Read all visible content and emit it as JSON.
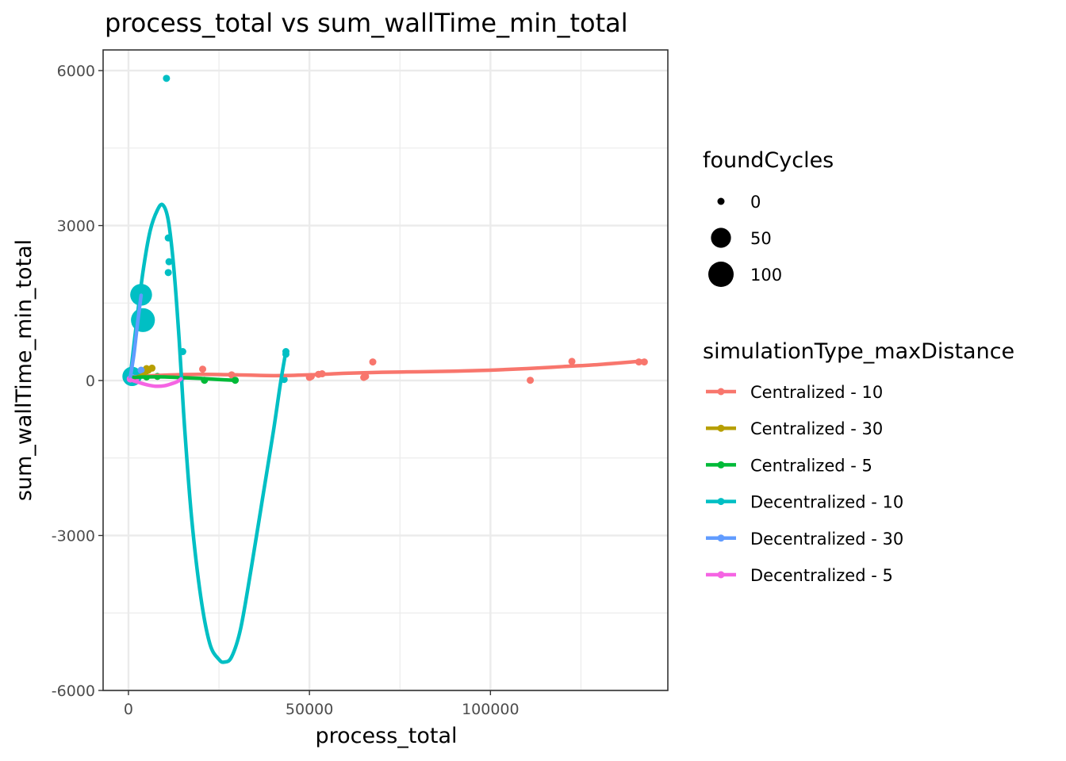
{
  "chart_data": {
    "type": "scatter",
    "title": "process_total  vs  sum_wallTime_min_total",
    "xlabel": "process_total",
    "ylabel": "sum_wallTime_min_total",
    "xlim": [
      -7000,
      149000
    ],
    "ylim": [
      -6000,
      6400
    ],
    "x_ticks": [
      0,
      50000,
      100000
    ],
    "x_tick_labels": [
      "0",
      "50000",
      "100000"
    ],
    "y_ticks": [
      -6000,
      -3000,
      0,
      3000,
      6000
    ],
    "y_tick_labels": [
      "-6000",
      "-3000",
      "0",
      "3000",
      "6000"
    ],
    "grid": true,
    "size_legend": {
      "title": "foundCycles",
      "entries": [
        {
          "label": "0",
          "value": 0
        },
        {
          "label": "50",
          "value": 50
        },
        {
          "label": "100",
          "value": 100
        }
      ]
    },
    "color_legend": {
      "title": "simulationType_maxDistance",
      "placement": "right"
    },
    "series": [
      {
        "name": "Centralized - 10",
        "color": "#F8766D",
        "points": [
          [
            20500,
            220
          ],
          [
            28500,
            110
          ],
          [
            50000,
            60
          ],
          [
            50500,
            80
          ],
          [
            52500,
            120
          ],
          [
            53500,
            130
          ],
          [
            65000,
            60
          ],
          [
            65500,
            80
          ],
          [
            67500,
            360
          ],
          [
            111000,
            5
          ],
          [
            122500,
            370
          ],
          [
            141000,
            360
          ],
          [
            142500,
            360
          ]
        ],
        "sizes": [
          0,
          0,
          0,
          0,
          0,
          0,
          0,
          0,
          0,
          0,
          0,
          0,
          0
        ],
        "curve": [
          [
            500,
            60
          ],
          [
            5000,
            85
          ],
          [
            10000,
            105
          ],
          [
            20000,
            120
          ],
          [
            30000,
            110
          ],
          [
            40000,
            95
          ],
          [
            50000,
            110
          ],
          [
            60000,
            140
          ],
          [
            70000,
            160
          ],
          [
            80000,
            170
          ],
          [
            90000,
            180
          ],
          [
            100000,
            200
          ],
          [
            110000,
            230
          ],
          [
            120000,
            270
          ],
          [
            130000,
            310
          ],
          [
            142500,
            380
          ]
        ]
      },
      {
        "name": "Centralized - 30",
        "color": "#B79F00",
        "points": [
          [
            1500,
            60
          ],
          [
            3000,
            100
          ],
          [
            4500,
            150
          ],
          [
            5000,
            230
          ],
          [
            5500,
            200
          ],
          [
            6500,
            240
          ]
        ],
        "sizes": [
          0,
          0,
          0,
          0,
          0,
          0
        ],
        "curve": [
          [
            500,
            30
          ],
          [
            2000,
            60
          ],
          [
            3500,
            100
          ],
          [
            5000,
            150
          ],
          [
            6500,
            240
          ]
        ]
      },
      {
        "name": "Centralized - 5",
        "color": "#00BA38",
        "points": [
          [
            2000,
            60
          ],
          [
            5000,
            70
          ],
          [
            8000,
            80
          ],
          [
            21000,
            5
          ],
          [
            29500,
            5
          ]
        ],
        "sizes": [
          0,
          0,
          0,
          0,
          0
        ],
        "curve": [
          [
            500,
            60
          ],
          [
            5000,
            70
          ],
          [
            10000,
            70
          ],
          [
            15000,
            55
          ],
          [
            20000,
            40
          ],
          [
            25000,
            20
          ],
          [
            29500,
            5
          ]
        ]
      },
      {
        "name": "Decentralized - 10",
        "color": "#00BFC4",
        "points": [
          [
            10500,
            5850
          ],
          [
            11000,
            2760
          ],
          [
            11200,
            2300
          ],
          [
            11000,
            2090
          ],
          [
            3500,
            1660
          ],
          [
            4000,
            1170
          ],
          [
            15000,
            560
          ],
          [
            43500,
            560
          ],
          [
            43500,
            510
          ],
          [
            43000,
            20
          ],
          [
            1000,
            80
          ]
        ],
        "sizes": [
          0,
          0,
          0,
          0,
          65,
          85,
          0,
          0,
          0,
          0,
          45
        ],
        "curve": [
          [
            500,
            80
          ],
          [
            2000,
            980
          ],
          [
            4000,
            2100
          ],
          [
            6000,
            2900
          ],
          [
            8000,
            3300
          ],
          [
            9500,
            3400
          ],
          [
            11000,
            3100
          ],
          [
            12500,
            2200
          ],
          [
            14000,
            800
          ],
          [
            15500,
            -900
          ],
          [
            17500,
            -2700
          ],
          [
            20000,
            -4200
          ],
          [
            22500,
            -5100
          ],
          [
            25000,
            -5400
          ],
          [
            26500,
            -5450
          ],
          [
            28500,
            -5350
          ],
          [
            31000,
            -4800
          ],
          [
            34000,
            -3600
          ],
          [
            37000,
            -2300
          ],
          [
            40000,
            -1000
          ],
          [
            42000,
            -50
          ],
          [
            43500,
            570
          ]
        ]
      },
      {
        "name": "Decentralized - 30",
        "color": "#619CFF",
        "points": [
          [
            1000,
            60
          ],
          [
            3500,
            200
          ]
        ],
        "sizes": [
          0,
          0
        ],
        "curve": [
          [
            500,
            60
          ],
          [
            1500,
            500
          ],
          [
            2500,
            1100
          ],
          [
            3500,
            1650
          ]
        ]
      },
      {
        "name": "Decentralized - 5",
        "color": "#F564E3",
        "points": [
          [
            500,
            30
          ],
          [
            2000,
            40
          ],
          [
            14500,
            30
          ]
        ],
        "sizes": [
          0,
          0,
          0
        ],
        "curve": [
          [
            500,
            20
          ],
          [
            1500,
            -10
          ],
          [
            3000,
            -40
          ],
          [
            5000,
            -80
          ],
          [
            7500,
            -110
          ],
          [
            10000,
            -100
          ],
          [
            12000,
            -60
          ],
          [
            13500,
            -20
          ],
          [
            14500,
            30
          ]
        ]
      }
    ]
  }
}
